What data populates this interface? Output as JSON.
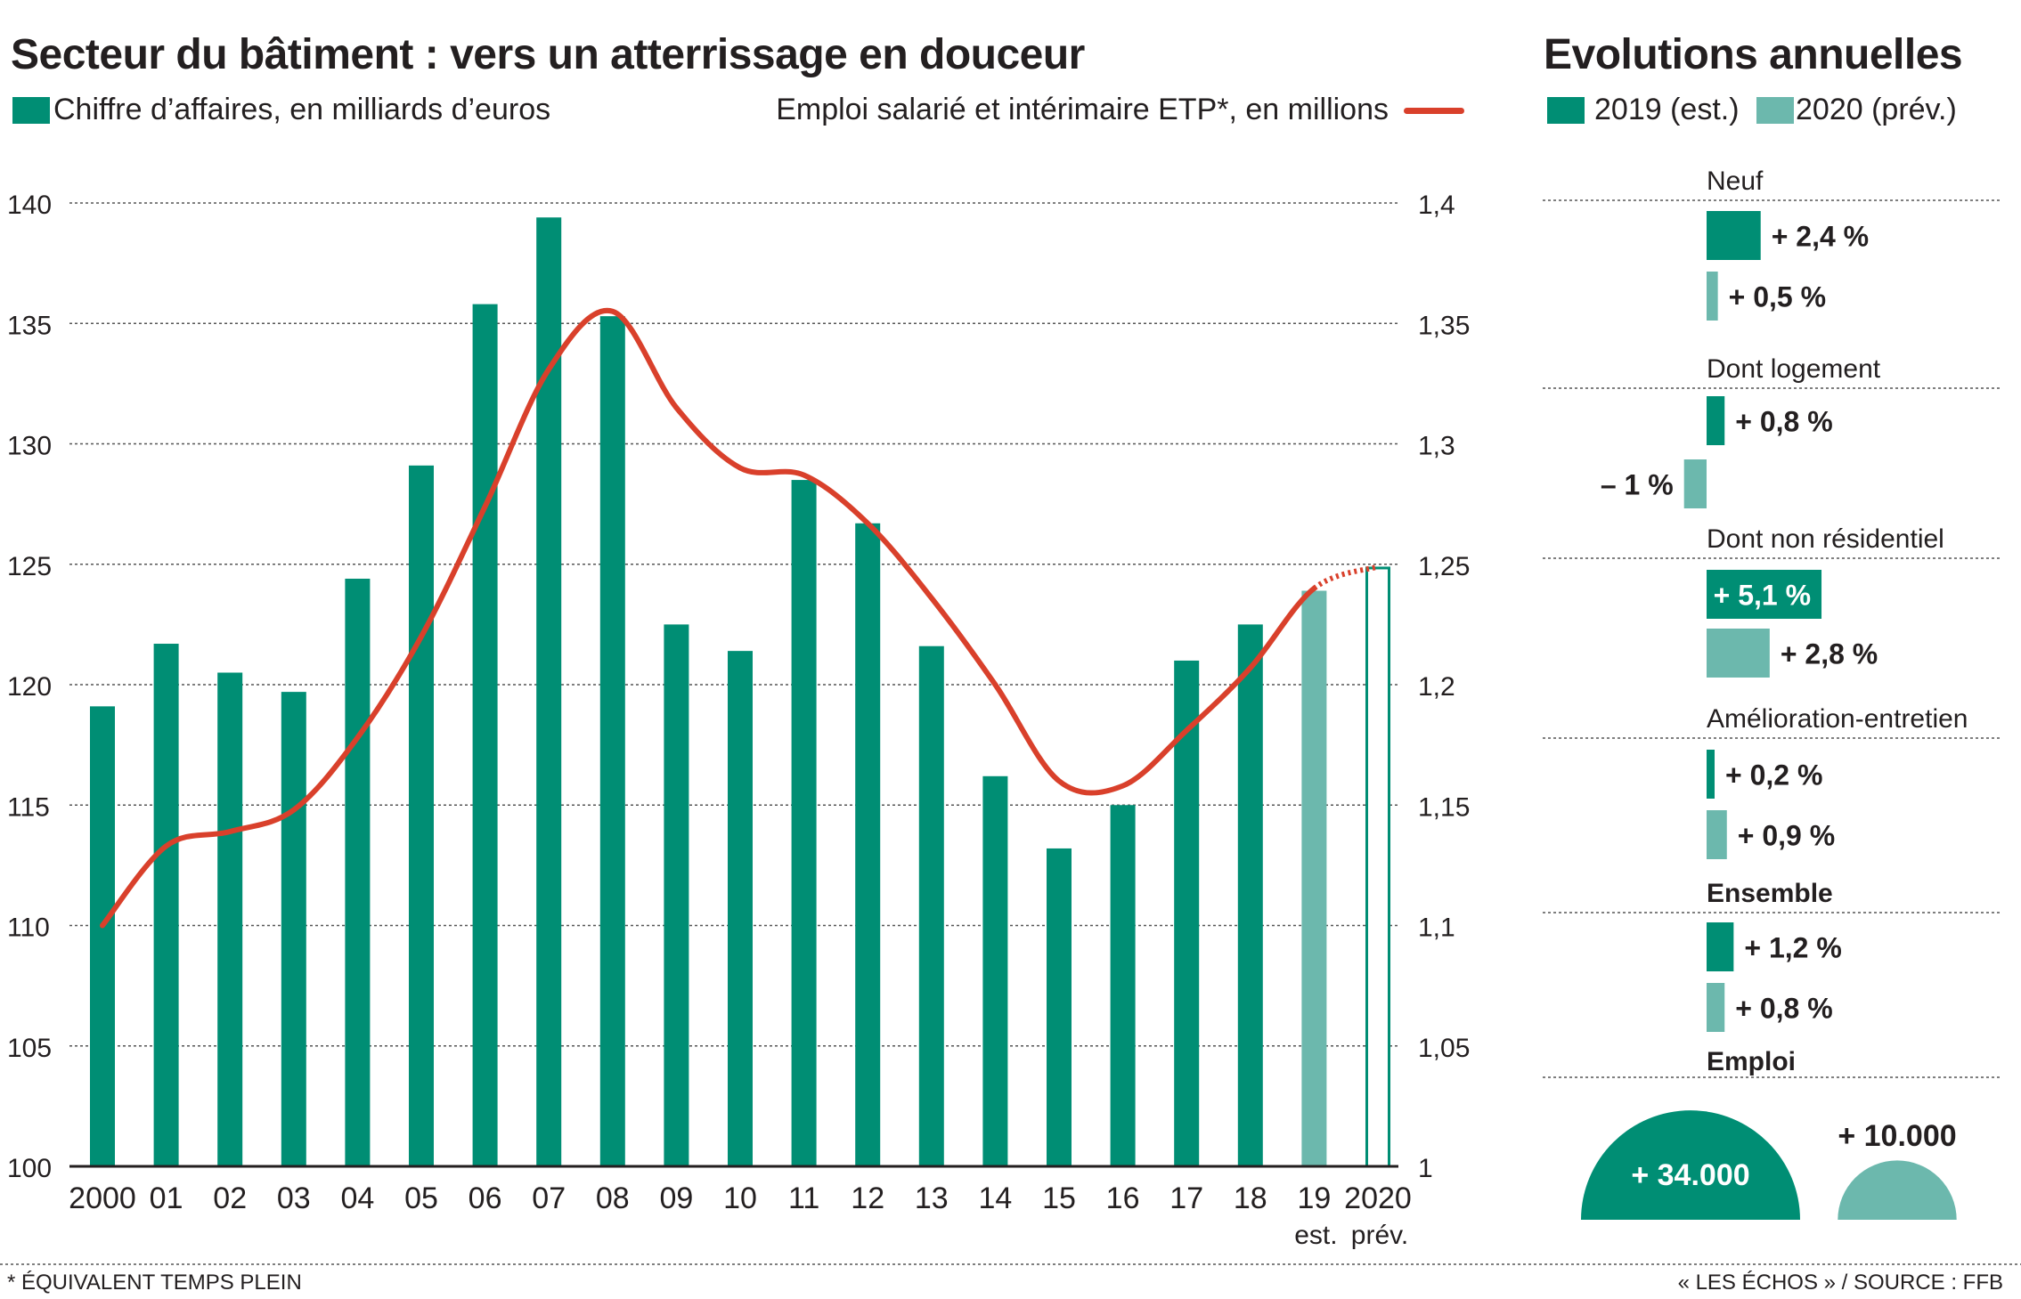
{
  "colors": {
    "dark_green": "#008e74",
    "light_green": "#6cb8ad",
    "line_red": "#d9402b",
    "text": "#231f20",
    "grid": "#555555"
  },
  "left": {
    "title": "Secteur du bâtiment : vers un atterrissage en douceur",
    "legend_bars": "Chiffre d’affaires, en milliards d’euros",
    "legend_line": "Emploi salarié et intérimaire ETP*, en millions"
  },
  "right": {
    "title": "Evolutions annuelles",
    "legend_2019": "2019 (est.)",
    "legend_2020": "2020 (prév.)"
  },
  "footnote": "* ÉQUIVALENT TEMPS PLEIN",
  "source": "« LES ÉCHOS » / SOURCE : FFB",
  "chart_data": [
    {
      "type": "bar",
      "categories": [
        "2000",
        "01",
        "02",
        "03",
        "04",
        "05",
        "06",
        "07",
        "08",
        "09",
        "10",
        "11",
        "12",
        "13",
        "14",
        "15",
        "16",
        "17",
        "18",
        "19",
        "2020"
      ],
      "category_sublabels": {
        "19": "est.",
        "2020": "prév."
      },
      "series": [
        {
          "name": "Chiffre d’affaires, en milliards d’euros",
          "axis": "left",
          "values": [
            119.1,
            121.7,
            120.5,
            119.7,
            124.4,
            129.1,
            135.8,
            139.4,
            135.3,
            122.5,
            121.4,
            128.5,
            126.7,
            121.6,
            116.2,
            113.2,
            115.0,
            121.0,
            122.5,
            123.9,
            124.9
          ],
          "styles": [
            "dark",
            "dark",
            "dark",
            "dark",
            "dark",
            "dark",
            "dark",
            "dark",
            "dark",
            "dark",
            "dark",
            "dark",
            "dark",
            "dark",
            "dark",
            "dark",
            "dark",
            "dark",
            "dark",
            "light",
            "outline"
          ]
        },
        {
          "name": "Emploi salarié et intérimaire ETP*, en millions",
          "type": "line",
          "axis": "right",
          "values": [
            1.1,
            1.133,
            1.139,
            1.148,
            1.178,
            1.22,
            1.274,
            1.331,
            1.355,
            1.315,
            1.29,
            1.287,
            1.267,
            1.236,
            1.2,
            1.16,
            1.158,
            1.181,
            1.207,
            1.24,
            1.249
          ],
          "dotted_from_index": 19
        }
      ],
      "ylim_left": [
        100,
        140
      ],
      "yticks_left": [
        "100",
        "105",
        "110",
        "115",
        "120",
        "125",
        "130",
        "135",
        "140"
      ],
      "ylim_right": [
        1,
        1.4
      ],
      "yticks_right": [
        "1",
        "1,05",
        "1,1",
        "1,15",
        "1,2",
        "1,25",
        "1,3",
        "1,35",
        "1,4"
      ],
      "grid": true
    },
    {
      "type": "bar",
      "title": "Evolutions annuelles",
      "groups": [
        {
          "label": "Neuf",
          "bold": false,
          "values": [
            2.4,
            0.5
          ],
          "labels": [
            "+ 2,4 %",
            "+ 0,5 %"
          ]
        },
        {
          "label": "Dont logement",
          "bold": false,
          "values": [
            0.8,
            -1.0
          ],
          "labels": [
            "+ 0,8 %",
            "– 1 %"
          ]
        },
        {
          "label": "Dont non résidentiel",
          "bold": false,
          "values": [
            5.1,
            2.8
          ],
          "labels": [
            "+ 5,1 %",
            "+ 2,8 %"
          ]
        },
        {
          "label": "Amélioration-entretien",
          "bold": false,
          "values": [
            0.2,
            0.9
          ],
          "labels": [
            "+ 0,2 %",
            "+ 0,9 %"
          ]
        },
        {
          "label": "Ensemble",
          "bold": true,
          "values": [
            1.2,
            0.8
          ],
          "labels": [
            "+ 1,2 %",
            "+ 0,8 %"
          ]
        }
      ],
      "series_names": [
        "2019 (est.)",
        "2020 (prév.)"
      ],
      "emploi": {
        "label": "Emploi",
        "values": [
          34000,
          10000
        ],
        "labels": [
          "+ 34.000",
          "+ 10.000"
        ]
      }
    }
  ]
}
